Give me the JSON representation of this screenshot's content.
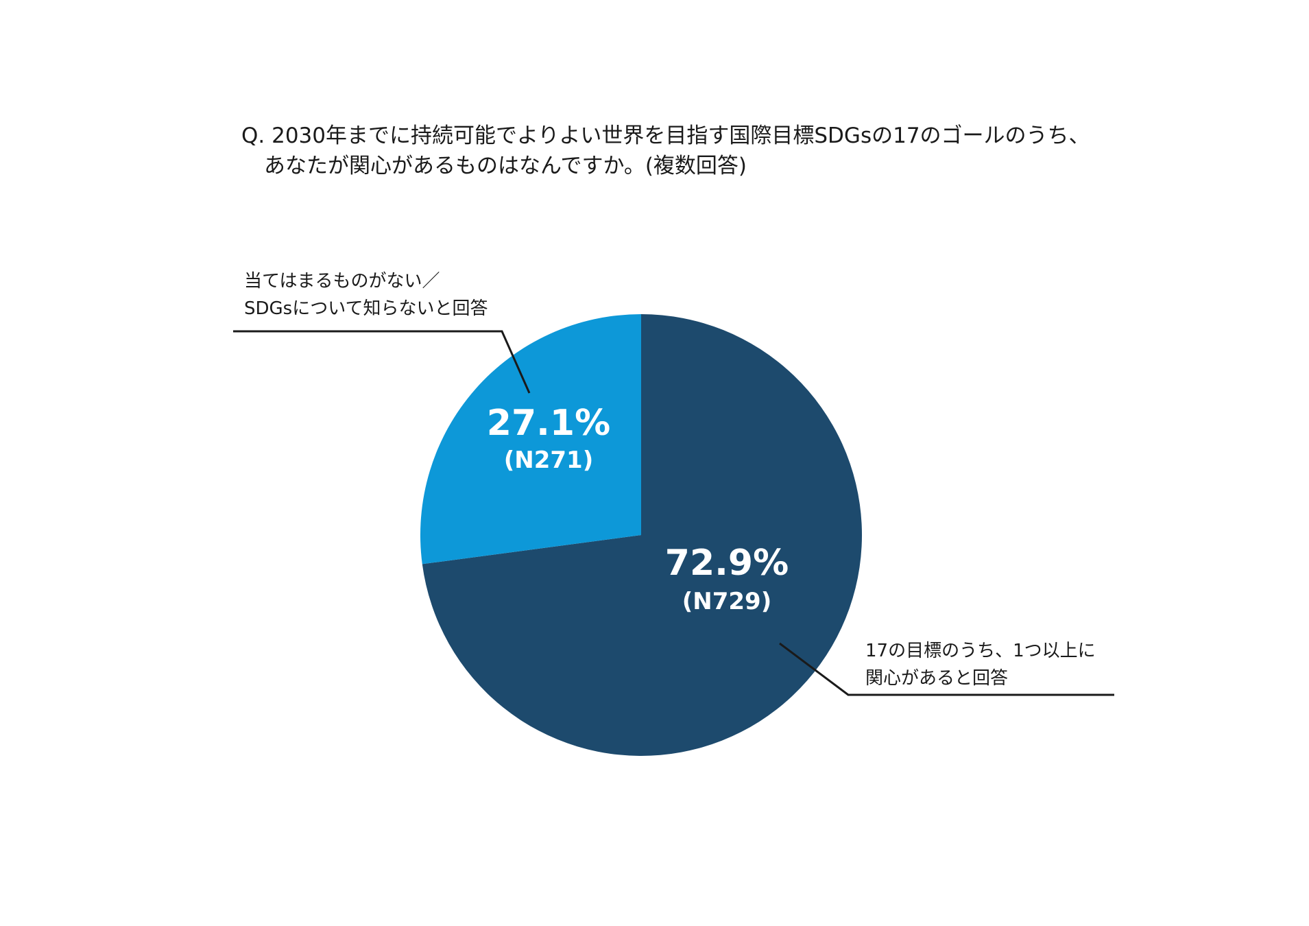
{
  "title": {
    "line1": "Q. 2030年までに持続可能でよりよい世界を目指す国際目標SDGsの17のゴールのうち、",
    "line2": "あなたが関心があるものはなんですか。(複数回答)"
  },
  "chart_data": {
    "type": "pie",
    "title": "Q. 2030年までに持続可能でよりよい世界を目指す国際目標SDGsの17のゴールのうち、あなたが関心があるものはなんですか。(複数回答)",
    "slices": [
      {
        "name_lines": [
          "17の目標のうち、1つ以上に",
          "関心があると回答"
        ],
        "percent": 72.9,
        "percent_label": "72.9%",
        "n": 729,
        "n_label": "(N729)",
        "color": "#1d4a6d"
      },
      {
        "name_lines": [
          "当てはまるものがない／",
          "SDGsについて知らないと回答"
        ],
        "percent": 27.1,
        "percent_label": "27.1%",
        "n": 271,
        "n_label": "(N271)",
        "color": "#0d98d8"
      }
    ],
    "start_angle": "12 o'clock",
    "direction": "clockwise"
  }
}
